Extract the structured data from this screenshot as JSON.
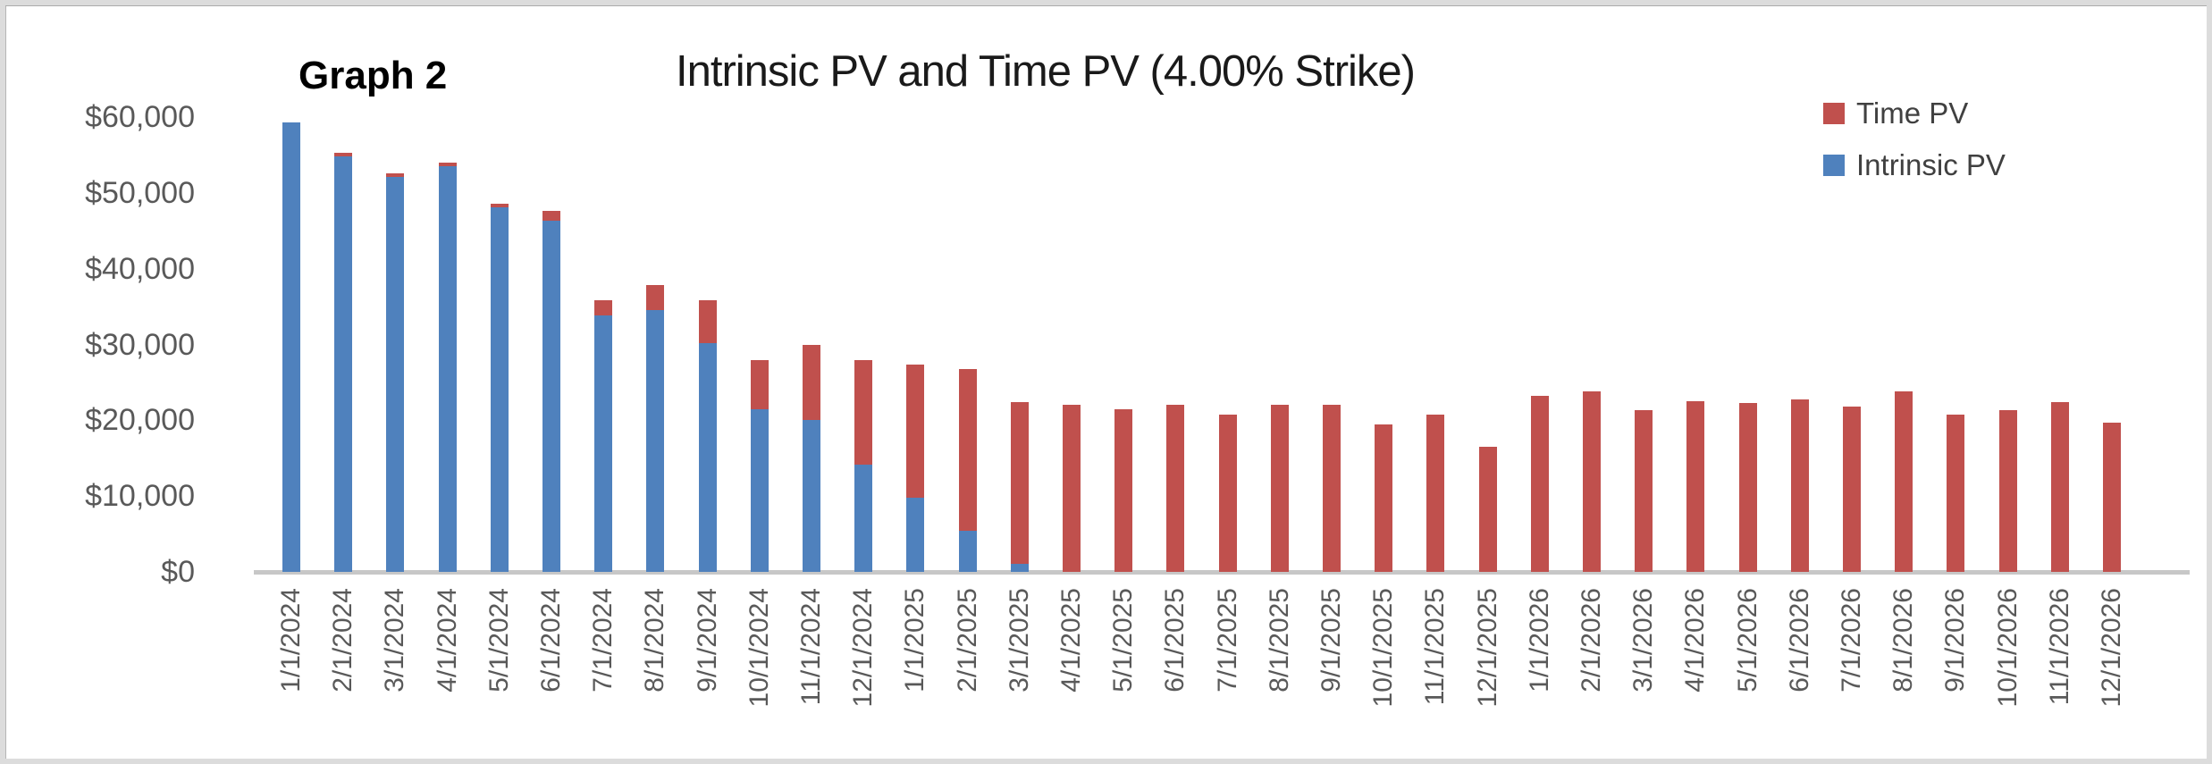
{
  "header": {
    "graph_label": "Graph 2",
    "title": "Intrinsic PV and Time PV (4.00% Strike)"
  },
  "legend": {
    "items": [
      {
        "label": "Time PV",
        "color": "#C0504D"
      },
      {
        "label": "Intrinsic PV",
        "color": "#4F81BD"
      }
    ]
  },
  "y_axis": {
    "tick_labels": [
      "$60,000",
      "$50,000",
      "$40,000",
      "$30,000",
      "$20,000",
      "$10,000",
      "$0"
    ],
    "tick_values": [
      60000,
      50000,
      40000,
      30000,
      20000,
      10000,
      0
    ]
  },
  "chart_data": {
    "type": "bar",
    "stacked": true,
    "title": "Intrinsic PV and Time PV (4.00% Strike)",
    "xlabel": "",
    "ylabel": "",
    "ylim": [
      0,
      60000
    ],
    "y_tick_step": 10000,
    "grid": false,
    "legend_position": "top-right",
    "categories": [
      "1/1/2024",
      "2/1/2024",
      "3/1/2024",
      "4/1/2024",
      "5/1/2024",
      "6/1/2024",
      "7/1/2024",
      "8/1/2024",
      "9/1/2024",
      "10/1/2024",
      "11/1/2024",
      "12/1/2024",
      "1/1/2025",
      "2/1/2025",
      "3/1/2025",
      "4/1/2025",
      "5/1/2025",
      "6/1/2025",
      "7/1/2025",
      "8/1/2025",
      "9/1/2025",
      "10/1/2025",
      "11/1/2025",
      "12/1/2025",
      "1/1/2026",
      "2/1/2026",
      "3/1/2026",
      "4/1/2026",
      "5/1/2026",
      "6/1/2026",
      "7/1/2026",
      "8/1/2026",
      "9/1/2026",
      "10/1/2026",
      "11/1/2026",
      "12/1/2026"
    ],
    "series": [
      {
        "name": "Intrinsic PV",
        "color": "#4F81BD",
        "values": [
          59300,
          54800,
          52100,
          53500,
          48100,
          46400,
          33900,
          34600,
          30200,
          21500,
          20000,
          14100,
          9800,
          5400,
          1100,
          0,
          0,
          0,
          0,
          0,
          0,
          0,
          0,
          0,
          0,
          0,
          0,
          0,
          0,
          0,
          0,
          0,
          0,
          0,
          0,
          0
        ]
      },
      {
        "name": "Time PV",
        "color": "#C0504D",
        "values": [
          0,
          500,
          500,
          500,
          500,
          1200,
          1900,
          3300,
          5700,
          6500,
          10000,
          13800,
          17600,
          21400,
          21300,
          22000,
          21500,
          22000,
          20800,
          22000,
          22000,
          19400,
          20800,
          16500,
          23200,
          23800,
          21300,
          22500,
          22300,
          22800,
          21800,
          23800,
          20800,
          21300,
          22400,
          19700
        ]
      }
    ]
  }
}
